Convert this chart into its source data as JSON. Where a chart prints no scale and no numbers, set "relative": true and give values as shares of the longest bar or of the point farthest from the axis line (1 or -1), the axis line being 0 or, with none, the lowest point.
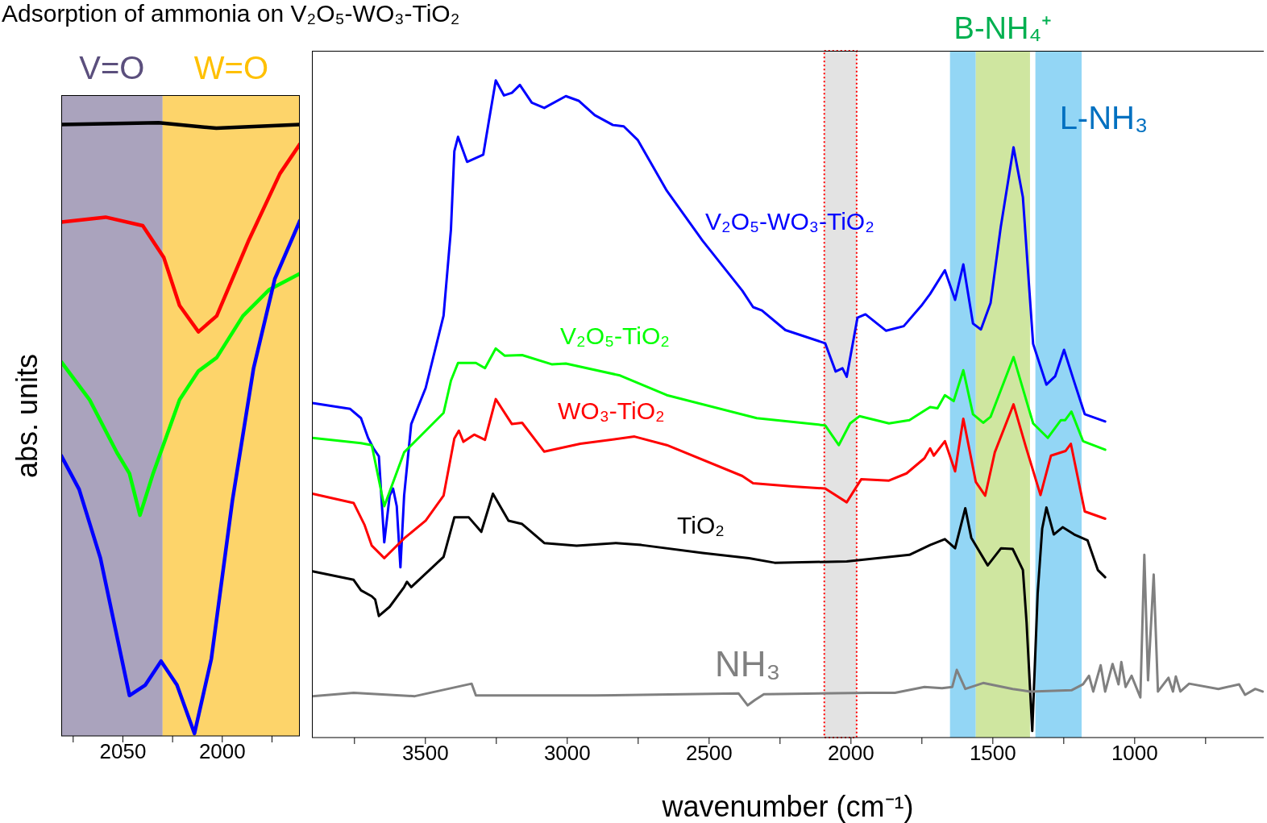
{
  "chart_data": [
    {
      "type": "line",
      "title": "Adsorption of ammonia on V₂O₅-WO₃-TiO₂",
      "ylabel": "abs. units",
      "relative": true,
      "xlim": [
        2081,
        1961
      ],
      "xticks": [
        {
          "value": 2075,
          "label": null
        },
        2050,
        {
          "value": 2025,
          "label": null
        },
        2000,
        {
          "value": 1975,
          "label": null
        }
      ],
      "bands": [
        {
          "axis": "x",
          "from": 2081,
          "to": 2030,
          "label": "V=O",
          "color": "#aaa3bd"
        },
        {
          "axis": "x",
          "from": 2030,
          "to": 1961,
          "label": "W=O",
          "color": "#fdd46a"
        }
      ],
      "series": [
        {
          "color": "#000000",
          "x": [
            2081,
            2032,
            2003,
            1961
          ],
          "values": [
            0.997,
            1.0,
            0.991,
            0.997
          ]
        },
        {
          "color": "#ff0000",
          "x": [
            2081,
            2058.7,
            2040,
            2029.4,
            2021.5,
            2012,
            2002.8,
            1987,
            1971,
            1961
          ],
          "values": [
            0.838,
            0.846,
            0.832,
            0.78,
            0.702,
            0.659,
            0.685,
            0.806,
            0.917,
            0.965
          ]
        },
        {
          "color": "#00ff00",
          "x": [
            2081,
            2066.7,
            2053,
            2046.7,
            2041.4,
            2034.8,
            2021.5,
            2012,
            2002.8,
            1989.6,
            1976.3,
            1961
          ],
          "values": [
            0.61,
            0.548,
            0.462,
            0.428,
            0.36,
            0.428,
            0.548,
            0.595,
            0.617,
            0.685,
            0.728,
            0.754
          ]
        },
        {
          "color": "#0000ff",
          "x": [
            2081,
            2072,
            2061.3,
            2046.7,
            2038.7,
            2030.8,
            2022.8,
            2014,
            2005.5,
            1994.9,
            1984.3,
            1973.6,
            1961
          ],
          "values": [
            0.457,
            0.402,
            0.29,
            0.066,
            0.083,
            0.122,
            0.083,
            0.004,
            0.126,
            0.384,
            0.599,
            0.745,
            0.84
          ]
        }
      ]
    },
    {
      "type": "line",
      "xlabel": "wavenumber (cm⁻¹)",
      "relative": true,
      "xlim": [
        3900,
        545
      ],
      "xticks": [
        {
          "value": 3750,
          "label": null
        },
        3500,
        {
          "value": 3250,
          "label": null
        },
        3000,
        {
          "value": 2750,
          "label": null
        },
        2500,
        {
          "value": 2250,
          "label": null
        },
        2000,
        {
          "value": 1750,
          "label": null
        },
        1500,
        {
          "value": 1250,
          "label": null
        },
        1000,
        {
          "value": 750,
          "label": null
        }
      ],
      "bands": [
        {
          "axis": "x",
          "from": 2094,
          "to": 1980,
          "label": null,
          "color": "#e3e3e3"
        },
        {
          "axis": "x",
          "from": 1651,
          "to": 1560,
          "label": null,
          "color": "#93d6f5"
        },
        {
          "axis": "x",
          "from": 1560,
          "to": 1369,
          "label": "B-NH₄⁺",
          "color": "#cfe6a0"
        },
        {
          "axis": "x",
          "from": 1350,
          "to": 1187,
          "label": "L-NH₃",
          "color": "#93d6f5"
        }
      ],
      "series": [
        {
          "name": "V₂O₅-WO₃-TiO₂",
          "color": "#0000ff",
          "x": [
            3898,
            3765,
            3727,
            3702,
            3683,
            3664,
            3645,
            3626,
            3614,
            3601,
            3588,
            3575,
            3550,
            3499,
            3436,
            3410,
            3398,
            3385,
            3353,
            3296,
            3277,
            3252,
            3223,
            3195,
            3167,
            3125,
            3081,
            3005,
            2960,
            2903,
            2839,
            2801,
            2751,
            2649,
            2523,
            2383,
            2345,
            2314,
            2231,
            2091,
            2054,
            2030,
            2015,
            1977,
            1949,
            1876,
            1814,
            1752,
            1721,
            1669,
            1633,
            1604,
            1570,
            1542,
            1508,
            1472,
            1427,
            1394,
            1358,
            1311,
            1280,
            1249,
            1213,
            1176,
            1104
          ],
          "values": [
            0.509,
            0.5,
            0.486,
            0.456,
            0.44,
            0.428,
            0.297,
            0.368,
            0.379,
            0.352,
            0.259,
            0.368,
            0.477,
            0.532,
            0.642,
            0.773,
            0.892,
            0.914,
            0.876,
            0.887,
            0.936,
            1.0,
            0.977,
            0.981,
            0.993,
            0.966,
            0.958,
            0.976,
            0.969,
            0.947,
            0.932,
            0.93,
            0.909,
            0.832,
            0.756,
            0.68,
            0.655,
            0.65,
            0.62,
            0.6,
            0.557,
            0.562,
            0.549,
            0.639,
            0.644,
            0.619,
            0.626,
            0.657,
            0.675,
            0.711,
            0.666,
            0.72,
            0.63,
            0.621,
            0.661,
            0.777,
            0.898,
            0.822,
            0.599,
            0.537,
            0.55,
            0.59,
            0.541,
            0.492,
            0.481
          ]
        },
        {
          "name": "V₂O₅-TiO₂",
          "color": "#00ff00",
          "x": [
            3898,
            3727,
            3689,
            3645,
            3575,
            3436,
            3410,
            3385,
            3322,
            3290,
            3252,
            3220,
            3159,
            3055,
            3005,
            2814,
            2649,
            2332,
            2091,
            2043,
            2003,
            1970,
            1866,
            1794,
            1721,
            1695,
            1669,
            1638,
            1604,
            1570,
            1534,
            1508,
            1427,
            1358,
            1306,
            1260,
            1245,
            1223,
            1182,
            1104
          ],
          "values": [
            0.456,
            0.448,
            0.445,
            0.352,
            0.434,
            0.494,
            0.543,
            0.57,
            0.57,
            0.562,
            0.592,
            0.581,
            0.582,
            0.568,
            0.569,
            0.551,
            0.521,
            0.486,
            0.475,
            0.445,
            0.478,
            0.489,
            0.478,
            0.483,
            0.503,
            0.501,
            0.521,
            0.512,
            0.559,
            0.492,
            0.479,
            0.488,
            0.579,
            0.478,
            0.456,
            0.483,
            0.483,
            0.496,
            0.451,
            0.438
          ]
        },
        {
          "name": "WO₃-TiO₂",
          "color": "#ff0000",
          "x": [
            3898,
            3753,
            3715,
            3689,
            3645,
            3575,
            3499,
            3436,
            3398,
            3382,
            3366,
            3328,
            3290,
            3252,
            3195,
            3159,
            3081,
            2954,
            2763,
            2649,
            2383,
            2345,
            2205,
            2091,
            2015,
            1964,
            1866,
            1804,
            1741,
            1721,
            1708,
            1669,
            1633,
            1604,
            1560,
            1527,
            1493,
            1427,
            1384,
            1332,
            1295,
            1244,
            1225,
            1176,
            1104
          ],
          "values": [
            0.371,
            0.357,
            0.324,
            0.292,
            0.273,
            0.303,
            0.33,
            0.368,
            0.455,
            0.467,
            0.45,
            0.461,
            0.453,
            0.515,
            0.477,
            0.479,
            0.435,
            0.447,
            0.458,
            0.445,
            0.398,
            0.387,
            0.382,
            0.379,
            0.358,
            0.393,
            0.391,
            0.402,
            0.425,
            0.44,
            0.429,
            0.451,
            0.405,
            0.485,
            0.389,
            0.368,
            0.434,
            0.507,
            0.443,
            0.369,
            0.429,
            0.436,
            0.447,
            0.344,
            0.333
          ]
        },
        {
          "name": "TiO₂",
          "color": "#000000",
          "x": [
            3898,
            3753,
            3727,
            3689,
            3677,
            3664,
            3626,
            3575,
            3565,
            3550,
            3436,
            3398,
            3347,
            3303,
            3262,
            3207,
            3159,
            3081,
            2967,
            2828,
            2739,
            2523,
            2359,
            2269,
            2015,
            1794,
            1721,
            1669,
            1633,
            1597,
            1576,
            1518,
            1471,
            1430,
            1394,
            1381,
            1361,
            1342,
            1326,
            1311,
            1285,
            1254,
            1213,
            1166,
            1130,
            1104
          ],
          "values": [
            0.253,
            0.24,
            0.224,
            0.215,
            0.21,
            0.185,
            0.199,
            0.229,
            0.237,
            0.229,
            0.275,
            0.335,
            0.335,
            0.313,
            0.371,
            0.33,
            0.325,
            0.296,
            0.292,
            0.296,
            0.293,
            0.281,
            0.273,
            0.266,
            0.268,
            0.278,
            0.293,
            0.302,
            0.288,
            0.349,
            0.304,
            0.262,
            0.288,
            0.287,
            0.255,
            0.175,
            0.01,
            0.219,
            0.318,
            0.35,
            0.309,
            0.32,
            0.309,
            0.3,
            0.255,
            0.244
          ]
        },
        {
          "name": "NH₃",
          "color": "#808080",
          "x": [
            3898,
            3753,
            3537,
            3337,
            3322,
            2903,
            2396,
            2364,
            2339,
            2307,
            1939,
            1845,
            1741,
            1679,
            1643,
            1627,
            1597,
            1534,
            1430,
            1368,
            1223,
            1182,
            1161,
            1146,
            1120,
            1104,
            1078,
            1057,
            1047,
            1032,
            1011,
            980,
            966,
            953,
            933,
            918,
            881,
            865,
            855,
            839,
            808,
            705,
            632,
            611,
            575,
            549
          ],
          "values": [
            0.063,
            0.068,
            0.063,
            0.082,
            0.064,
            0.064,
            0.067,
            0.049,
            0.057,
            0.066,
            0.068,
            0.068,
            0.077,
            0.075,
            0.077,
            0.103,
            0.074,
            0.083,
            0.074,
            0.07,
            0.072,
            0.081,
            0.094,
            0.07,
            0.11,
            0.07,
            0.112,
            0.081,
            0.115,
            0.077,
            0.094,
            0.061,
            0.278,
            0.087,
            0.248,
            0.07,
            0.091,
            0.07,
            0.093,
            0.07,
            0.082,
            0.074,
            0.081,
            0.065,
            0.074,
            0.07
          ]
        }
      ]
    }
  ]
}
